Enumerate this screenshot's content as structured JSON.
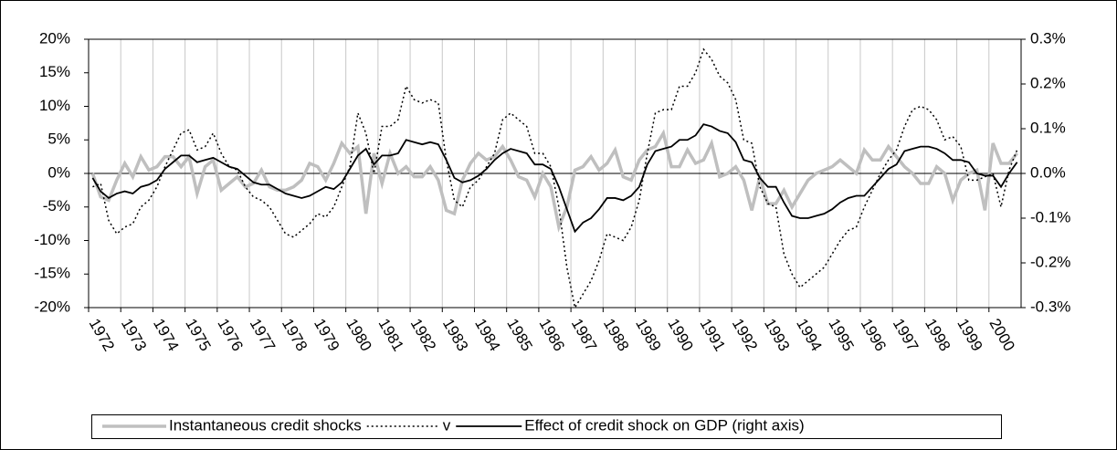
{
  "chart_data": {
    "type": "line",
    "categories": [
      "1972",
      null,
      null,
      null,
      "1973",
      null,
      null,
      null,
      "1974",
      null,
      null,
      null,
      "1975",
      null,
      null,
      null,
      "1976",
      null,
      null,
      null,
      "1977",
      null,
      null,
      null,
      "1978",
      null,
      null,
      null,
      "1979",
      null,
      null,
      null,
      "1980",
      null,
      null,
      null,
      "1981",
      null,
      null,
      null,
      "1982",
      null,
      null,
      null,
      "1983",
      null,
      null,
      null,
      "1984",
      null,
      null,
      null,
      "1985",
      null,
      null,
      null,
      "1986",
      null,
      null,
      null,
      "1987",
      null,
      null,
      null,
      "1988",
      null,
      null,
      null,
      "1989",
      null,
      null,
      null,
      "1990",
      null,
      null,
      null,
      "1991",
      null,
      null,
      null,
      "1992",
      null,
      null,
      null,
      "1993",
      null,
      null,
      null,
      "1994",
      null,
      null,
      null,
      "1995",
      null,
      null,
      null,
      "1996",
      null,
      null,
      null,
      "1997",
      null,
      null,
      null,
      "1998",
      null,
      null,
      null,
      "1999",
      null,
      null,
      null,
      "2000",
      null,
      null,
      null
    ],
    "series": [
      {
        "name": "Instantaneous credit shocks",
        "color": "#bfbfbf",
        "width": 3.5,
        "dash": "solid",
        "values": [
          0,
          -3.5,
          -4,
          -1,
          1.5,
          -0.5,
          2.5,
          0.5,
          1,
          2.5,
          2.5,
          1,
          2.5,
          -3,
          1,
          2,
          -2.5,
          -1.5,
          -0.5,
          -2,
          -1.5,
          0.5,
          -2,
          -2.5,
          -2.5,
          -2,
          -1,
          1.5,
          1,
          -1,
          1.5,
          4.5,
          3,
          4,
          -6,
          3,
          -1.5,
          3,
          0,
          1,
          -0.5,
          -0.5,
          1,
          -1,
          -5.5,
          -6,
          -1,
          1.5,
          3,
          2,
          2.5,
          4,
          2,
          -0.5,
          -1,
          -3.5,
          0,
          -2,
          -8,
          -5,
          0.5,
          1,
          2.5,
          0.5,
          1.5,
          3.5,
          -0.5,
          -1,
          2,
          3.5,
          4,
          6,
          1,
          1,
          3.5,
          1.5,
          2,
          4.5,
          -0.5,
          0,
          1,
          -1,
          -5.5,
          -0.5,
          -4.5,
          -4.5,
          -2.5,
          -5,
          -3,
          -1,
          0,
          0.5,
          1,
          2,
          1,
          0,
          3.5,
          2,
          2,
          4,
          2.5,
          1,
          0,
          -1.5,
          -1.5,
          1,
          0,
          -4,
          -1,
          0,
          0.5,
          -5.5,
          4.5,
          1.5,
          1.5,
          3
        ]
      },
      {
        "name": "v",
        "color": "#000000",
        "width": 1.5,
        "dash": "dotted",
        "values": [
          -2,
          -1.5,
          -7,
          -9,
          -8,
          -7.5,
          -5,
          -4,
          -2,
          1,
          3.5,
          6,
          6.5,
          3.5,
          4,
          6,
          3,
          1,
          0.5,
          -2,
          -3.5,
          -4,
          -5,
          -7,
          -9,
          -9.5,
          -8.5,
          -7.5,
          -6,
          -6.5,
          -5,
          -2,
          1,
          9,
          6,
          0,
          7,
          7,
          8,
          13,
          11,
          10.5,
          11,
          10.5,
          2,
          -4,
          -5,
          -2,
          -1,
          1,
          3,
          8,
          9,
          8,
          7,
          3,
          3,
          1,
          -5,
          -14,
          -20,
          -18,
          -16,
          -13,
          -9,
          -9.5,
          -10,
          -8,
          -4,
          3,
          9,
          9.5,
          9.5,
          13,
          13,
          15,
          18.5,
          17,
          14.5,
          13.5,
          11,
          5,
          4.5,
          -2,
          -4.5,
          -5,
          -12,
          -15,
          -17,
          -16,
          -15,
          -14,
          -12,
          -10,
          -8.5,
          -8,
          -5,
          -2.5,
          0,
          2,
          3.5,
          7,
          9.5,
          10,
          9.5,
          8,
          5,
          5.5,
          4,
          -1,
          -1,
          -0.5,
          0,
          -5,
          0.5,
          3.5
        ]
      },
      {
        "name": "Effect of credit shock on GDP (right axis)",
        "color": "#000000",
        "width": 1.8,
        "dash": "solid",
        "axis": "y2",
        "values": [
          -0.01,
          -0.04,
          -0.055,
          -0.045,
          -0.04,
          -0.045,
          -0.03,
          -0.025,
          -0.015,
          0.01,
          0.025,
          0.04,
          0.04,
          0.025,
          0.03,
          0.035,
          0.025,
          0.015,
          0.01,
          -0.005,
          -0.02,
          -0.025,
          -0.025,
          -0.035,
          -0.045,
          -0.05,
          -0.055,
          -0.05,
          -0.04,
          -0.03,
          -0.035,
          -0.02,
          0.01,
          0.04,
          0.055,
          0.02,
          0.04,
          0.04,
          0.045,
          0.075,
          0.07,
          0.065,
          0.07,
          0.065,
          0.03,
          -0.01,
          -0.02,
          -0.015,
          -0.005,
          0.01,
          0.03,
          0.045,
          0.055,
          0.05,
          0.045,
          0.02,
          0.02,
          0.01,
          -0.03,
          -0.08,
          -0.13,
          -0.11,
          -0.1,
          -0.08,
          -0.055,
          -0.055,
          -0.06,
          -0.05,
          -0.03,
          0.02,
          0.05,
          0.055,
          0.06,
          0.075,
          0.075,
          0.085,
          0.11,
          0.105,
          0.095,
          0.09,
          0.07,
          0.03,
          0.025,
          -0.01,
          -0.03,
          -0.03,
          -0.065,
          -0.095,
          -0.1,
          -0.1,
          -0.095,
          -0.09,
          -0.08,
          -0.065,
          -0.055,
          -0.05,
          -0.05,
          -0.03,
          -0.01,
          0.01,
          0.02,
          0.05,
          0.055,
          0.06,
          0.06,
          0.055,
          0.045,
          0.03,
          0.03,
          0.025,
          0,
          -0.005,
          -0.005,
          -0.03,
          0,
          0.025
        ]
      }
    ],
    "ylim": [
      -20,
      20
    ],
    "yticks": [
      {
        "value": -20,
        "label": "-20%"
      },
      {
        "value": -15,
        "label": "-15%"
      },
      {
        "value": -10,
        "label": "-10%"
      },
      {
        "value": -5,
        "label": "-5%"
      },
      {
        "value": 0,
        "label": "0%"
      },
      {
        "value": 5,
        "label": "5%"
      },
      {
        "value": 10,
        "label": "10%"
      },
      {
        "value": 15,
        "label": "15%"
      },
      {
        "value": 20,
        "label": "20%"
      }
    ],
    "y2lim": [
      -0.3,
      0.3
    ],
    "y2ticks": [
      {
        "value": -0.3,
        "label": "-0.3%"
      },
      {
        "value": -0.2,
        "label": "-0.2%"
      },
      {
        "value": -0.1,
        "label": "-0.1%"
      },
      {
        "value": 0,
        "label": "0.0%"
      },
      {
        "value": 0.1,
        "label": "0.1%"
      },
      {
        "value": 0.2,
        "label": "0.2%"
      },
      {
        "value": 0.3,
        "label": "0.3%"
      }
    ],
    "grid": true,
    "legend": "bottom"
  }
}
